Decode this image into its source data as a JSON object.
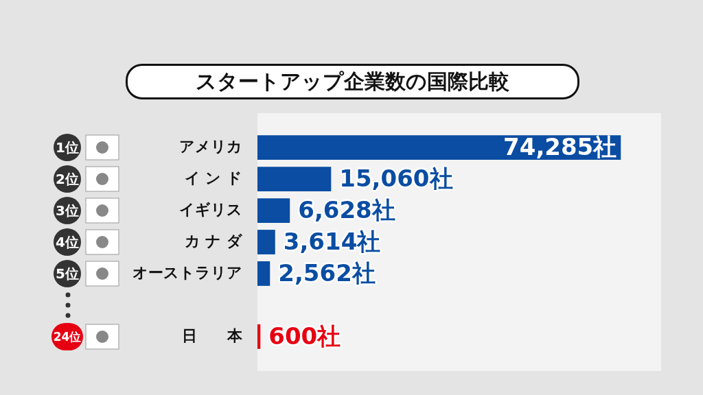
{
  "chart_data": {
    "type": "bar",
    "orientation": "horizontal",
    "title": "スタートアップ企業数の国際比較",
    "categories": [
      "アメリカ",
      "イ ン ド",
      "イギリス",
      "カ ナ ダ",
      "オーストラリア",
      null,
      "日　　本"
    ],
    "values": [
      74285,
      15060,
      6628,
      3614,
      2562,
      null,
      600
    ],
    "colors": [
      "#0a4da2",
      "#0a4da2",
      "#0a4da2",
      "#0a4da2",
      "#0a4da2",
      "#0a4da2",
      "#e60012"
    ],
    "value_labels": [
      "74,285社",
      "15,060社",
      "6,628社",
      "3,614社",
      "2,562社",
      null,
      "600社"
    ],
    "annotations": [
      "1位",
      "2位",
      "3位",
      "4位",
      "5位",
      "24位"
    ],
    "legend": false
  }
}
